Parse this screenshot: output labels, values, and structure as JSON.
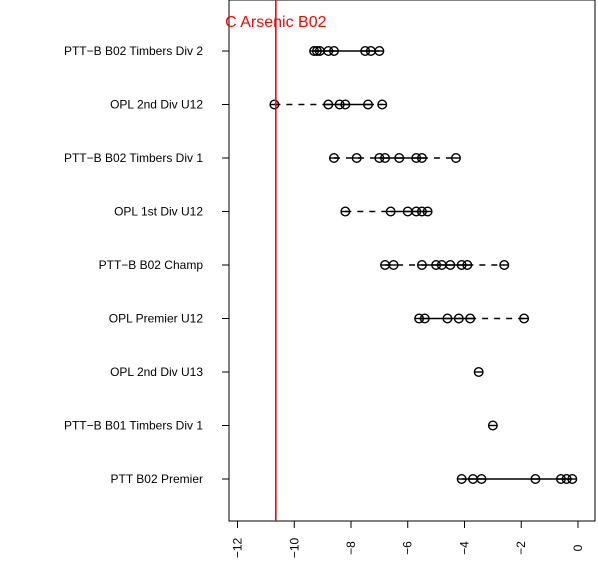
{
  "chart_data": {
    "type": "scatter",
    "title": "",
    "xlabel": "",
    "ylabel": "",
    "xlim": [
      -12.3,
      0.6
    ],
    "x_ticks": [
      -12,
      -10,
      -8,
      -6,
      -4,
      -2,
      0
    ],
    "reference_line": {
      "x": -10.65,
      "label": "C Arsenic B02",
      "color": "#ff0000"
    },
    "rows": [
      {
        "label": "PTT−B B02 Timbers Div 2",
        "points": [
          -9.3,
          -9.2,
          -9.1,
          -8.8,
          -8.6,
          -7.5,
          -7.3,
          -7.0
        ],
        "segments": [
          {
            "from": -9.3,
            "to": -7.0,
            "style": "solid"
          }
        ]
      },
      {
        "label": "OPL 2nd Div U12",
        "points": [
          -10.7,
          -8.8,
          -8.4,
          -8.2,
          -7.4,
          -6.9
        ],
        "segments": [
          {
            "from": -10.7,
            "to": -8.8,
            "style": "dashed"
          },
          {
            "from": -8.8,
            "to": -7.4,
            "style": "solid"
          },
          {
            "from": -7.4,
            "to": -6.9,
            "style": "dashed"
          }
        ]
      },
      {
        "label": "PTT−B B02 Timbers Div 1",
        "points": [
          -8.6,
          -7.8,
          -7.0,
          -6.8,
          -6.3,
          -5.7,
          -5.5,
          -4.3
        ],
        "segments": [
          {
            "from": -8.6,
            "to": -7.0,
            "style": "dashed"
          },
          {
            "from": -7.0,
            "to": -5.5,
            "style": "solid"
          },
          {
            "from": -5.5,
            "to": -4.3,
            "style": "dashed"
          }
        ]
      },
      {
        "label": "OPL 1st Div U12",
        "points": [
          -8.2,
          -6.6,
          -6.0,
          -5.7,
          -5.5,
          -5.3
        ],
        "segments": [
          {
            "from": -8.2,
            "to": -6.6,
            "style": "dashed"
          },
          {
            "from": -6.6,
            "to": -5.3,
            "style": "solid"
          }
        ]
      },
      {
        "label": "PTT−B B02 Champ",
        "points": [
          -6.8,
          -6.5,
          -5.5,
          -5.0,
          -4.8,
          -4.5,
          -4.1,
          -3.9,
          -2.6
        ],
        "segments": [
          {
            "from": -6.8,
            "to": -5.5,
            "style": "dashed"
          },
          {
            "from": -5.5,
            "to": -3.9,
            "style": "solid"
          },
          {
            "from": -3.9,
            "to": -2.6,
            "style": "dashed"
          }
        ]
      },
      {
        "label": "OPL Premier U12",
        "points": [
          -5.6,
          -5.4,
          -4.6,
          -4.2,
          -3.8,
          -1.9
        ],
        "segments": [
          {
            "from": -5.6,
            "to": -3.8,
            "style": "solid"
          },
          {
            "from": -3.8,
            "to": -1.9,
            "style": "dashed"
          }
        ]
      },
      {
        "label": "OPL 2nd Div U13",
        "points": [
          -3.5
        ],
        "segments": []
      },
      {
        "label": "PTT−B B01 Timbers Div 1",
        "points": [
          -3.0
        ],
        "segments": []
      },
      {
        "label": "PTT B02 Premier",
        "points": [
          -4.1,
          -3.7,
          -3.4,
          -1.5,
          -0.6,
          -0.4,
          -0.2
        ],
        "segments": [
          {
            "from": -4.1,
            "to": -0.2,
            "style": "solid"
          }
        ]
      }
    ]
  }
}
